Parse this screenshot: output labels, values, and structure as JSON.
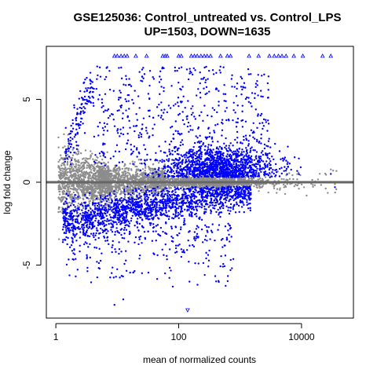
{
  "chart_data": {
    "type": "scatter",
    "title": "GSE125036: Control_untreated vs. Control_LPS",
    "subtitle": "UP=1503, DOWN=1635",
    "xlabel": "mean of normalized counts",
    "ylabel": "log fold change",
    "x_scale": "log",
    "xlim": [
      0.7,
      70000
    ],
    "ylim": [
      -8.2,
      8.2
    ],
    "x_ticks": [
      1,
      100,
      10000
    ],
    "x_tick_labels": [
      "1",
      "100",
      "10000"
    ],
    "y_ticks": [
      -5,
      0,
      5
    ],
    "y_tick_labels": [
      "-5",
      "0",
      "5"
    ],
    "grid": false,
    "legend": "none",
    "reference_line_y": 0,
    "colors": {
      "significant": "#0000ff",
      "not_significant": "#8c8c8c",
      "reference_line": "#666666",
      "axes": "#000000"
    },
    "series": [
      {
        "name": "UP",
        "count": 1503
      },
      {
        "name": "DOWN",
        "count": 1635
      }
    ],
    "outliers_high_marker": "triangle-up",
    "outliers_low_marker": "triangle-down",
    "outliers_high_x": [
      9,
      10,
      11.5,
      13,
      14.5,
      20,
      30,
      55,
      60,
      65,
      100,
      110,
      160,
      180,
      200,
      230,
      260,
      290,
      330,
      480,
      620,
      700,
      1400,
      2000,
      3000,
      3600,
      4200,
      4800,
      5600,
      7500,
      10500,
      22000,
      30000
    ],
    "outliers_low_x": [
      140
    ],
    "sample_points": [
      {
        "x": 2.0,
        "y": 4.5
      },
      {
        "x": 2.5,
        "y": 5.5
      },
      {
        "x": 3.0,
        "y": 6.2
      },
      {
        "x": 1.6,
        "y": 2.6
      },
      {
        "x": 2.2,
        "y": 2.0
      },
      {
        "x": 1.4,
        "y": -2.5
      },
      {
        "x": 1.8,
        "y": -3.8
      },
      {
        "x": 9,
        "y": -7.4
      },
      {
        "x": 60,
        "y": -5.5
      },
      {
        "x": 80,
        "y": -6.3
      },
      {
        "x": 150,
        "y": -6.0
      },
      {
        "x": 500,
        "y": 3.6
      },
      {
        "x": 30000,
        "y": 0.5
      },
      {
        "x": 35000,
        "y": -0.3
      }
    ]
  }
}
